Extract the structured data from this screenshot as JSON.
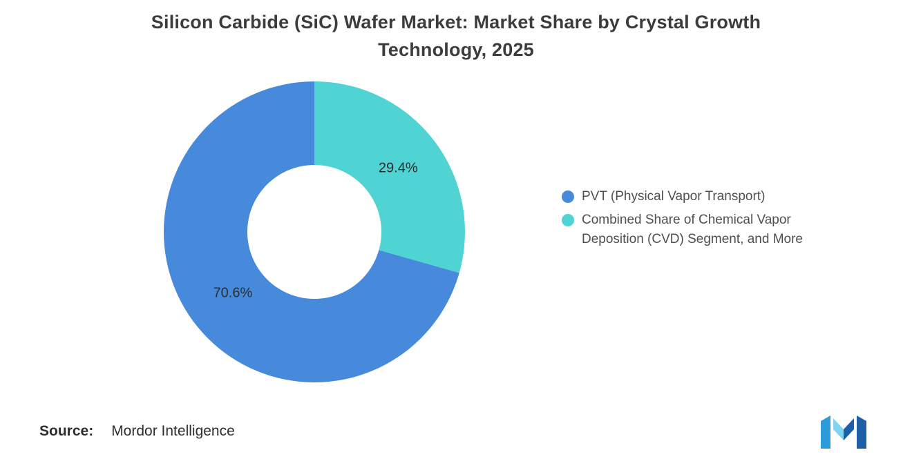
{
  "title": "Silicon Carbide (SiC) Wafer Market: Market Share by Crystal Growth Technology, 2025",
  "chart_data": {
    "type": "pie",
    "donut": true,
    "title": "Silicon Carbide (SiC) Wafer Market: Market Share by Crystal Growth Technology, 2025",
    "slices": [
      {
        "label": "PVT (Physical Vapor Transport)",
        "value": 70.6,
        "color": "#478ADB"
      },
      {
        "label": "Combined Share of Chemical Vapor Deposition (CVD) Segment, and More",
        "value": 29.4,
        "color": "#50D3D3"
      }
    ],
    "legend_position": "right",
    "start_angle": "second slice starts at 12 o'clock, clockwise"
  },
  "source": {
    "label": "Source:",
    "value": "Mordor Intelligence"
  }
}
